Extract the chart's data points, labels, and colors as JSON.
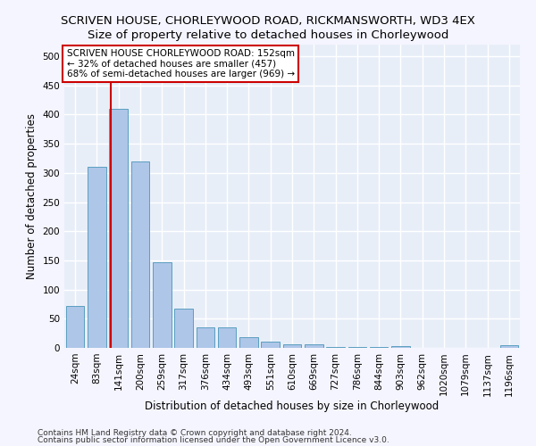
{
  "title": "SCRIVEN HOUSE, CHORLEYWOOD ROAD, RICKMANSWORTH, WD3 4EX",
  "subtitle": "Size of property relative to detached houses in Chorleywood",
  "xlabel": "Distribution of detached houses by size in Chorleywood",
  "ylabel": "Number of detached properties",
  "categories": [
    "24sqm",
    "83sqm",
    "141sqm",
    "200sqm",
    "259sqm",
    "317sqm",
    "376sqm",
    "434sqm",
    "493sqm",
    "551sqm",
    "610sqm",
    "669sqm",
    "727sqm",
    "786sqm",
    "844sqm",
    "903sqm",
    "962sqm",
    "1020sqm",
    "1079sqm",
    "1137sqm",
    "1196sqm"
  ],
  "values": [
    72,
    310,
    410,
    320,
    147,
    68,
    35,
    35,
    18,
    11,
    6,
    6,
    1,
    1,
    1,
    3,
    0,
    0,
    0,
    0,
    4
  ],
  "bar_color": "#aec6e8",
  "bar_edge_color": "#5a9fc0",
  "vline_color": "#cc0000",
  "annotation_text": "SCRIVEN HOUSE CHORLEYWOOD ROAD: 152sqm\n← 32% of detached houses are smaller (457)\n68% of semi-detached houses are larger (969) →",
  "annotation_box_color": "#ffffff",
  "annotation_box_edge": "#cc0000",
  "ylim": [
    0,
    520
  ],
  "yticks": [
    0,
    50,
    100,
    150,
    200,
    250,
    300,
    350,
    400,
    450,
    500
  ],
  "footer1": "Contains HM Land Registry data © Crown copyright and database right 2024.",
  "footer2": "Contains public sector information licensed under the Open Government Licence v3.0.",
  "bg_color": "#e8eef8",
  "grid_color": "#ffffff",
  "fig_bg_color": "#f5f5ff",
  "title_fontsize": 9.5,
  "subtitle_fontsize": 9.5,
  "axis_label_fontsize": 8.5,
  "tick_fontsize": 7.5,
  "footer_fontsize": 6.5
}
